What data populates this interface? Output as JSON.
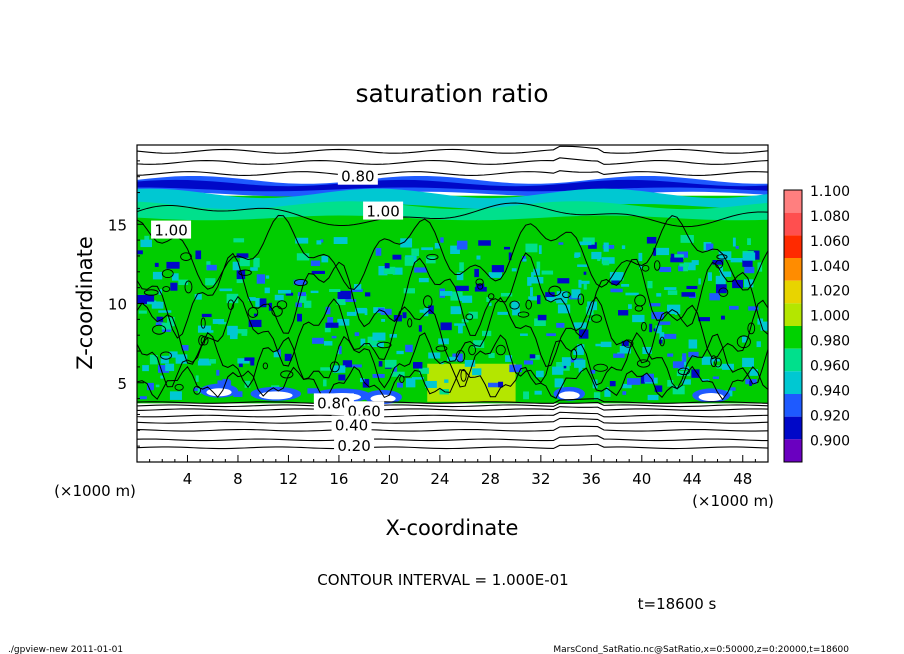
{
  "chart_data": {
    "type": "heatmap",
    "title": "saturation ratio",
    "xlabel": "X-coordinate",
    "ylabel": "Z-coordinate",
    "x_unit": "(×1000 m)",
    "y_unit": "(×1000 m)",
    "xlim": [
      0,
      50
    ],
    "ylim": [
      0,
      20
    ],
    "x_ticks": [
      4,
      8,
      12,
      16,
      20,
      24,
      28,
      32,
      36,
      40,
      44,
      48
    ],
    "y_ticks": [
      5,
      10,
      15
    ],
    "contour_labels": [
      {
        "text": "0.80",
        "x": 17.5,
        "z": 18.0
      },
      {
        "text": "1.00",
        "x": 19.5,
        "z": 15.8
      },
      {
        "text": "1.00",
        "x": 2.7,
        "z": 14.6
      },
      {
        "text": "0.80",
        "x": 15.6,
        "z": 3.7
      },
      {
        "text": "0.60",
        "x": 18.0,
        "z": 3.2
      },
      {
        "text": "0.40",
        "x": 17.0,
        "z": 2.3
      },
      {
        "text": "0.20",
        "x": 17.2,
        "z": 1.0
      }
    ],
    "colorbar": {
      "labels": [
        "1.100",
        "1.080",
        "1.060",
        "1.040",
        "1.020",
        "1.000",
        "0.980",
        "0.960",
        "0.940",
        "0.920",
        "0.900"
      ],
      "colors": [
        "#ff7f7f",
        "#ff4f4f",
        "#ff2a00",
        "#ff8c00",
        "#e8d400",
        "#b4e600",
        "#00d200",
        "#00e08c",
        "#00c8d2",
        "#1e5aff",
        "#0008c8",
        "#6a00c0"
      ]
    }
  },
  "annotations": {
    "contour_interval": "CONTOUR INTERVAL = 1.000E-01",
    "time": "t=18600 s",
    "footer_left": "./gpview-new  2011-01-01",
    "footer_right": "MarsCond_SatRatio.nc@SatRatio,x=0:50000,z=0:20000,t=18600"
  }
}
